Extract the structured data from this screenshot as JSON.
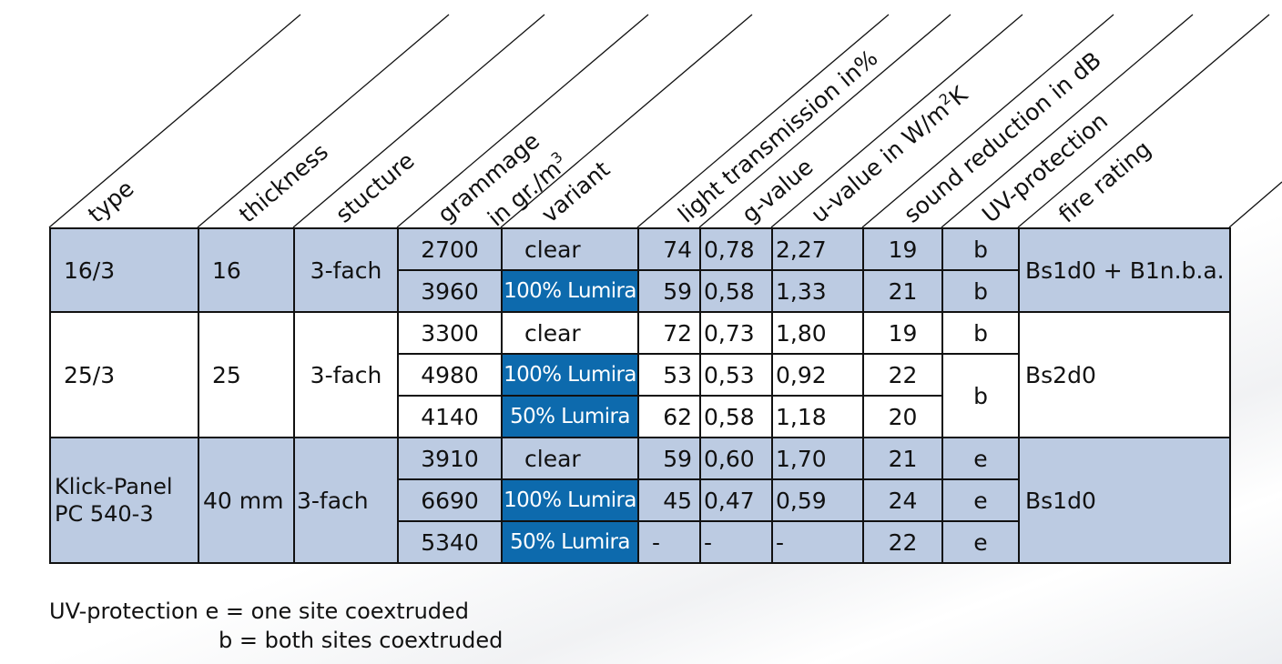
{
  "headers": {
    "type": "type",
    "thickness": "thickness",
    "structure": "stucture",
    "grammage_1": "grammage",
    "grammage_2": "in gr./m",
    "grammage_sup": "3",
    "variant": "variant",
    "light": "light transmission in%",
    "gvalue": "g-value",
    "uvalue": "u-value in W/m",
    "uvalue_sup": "2",
    "uvalue_end": "K",
    "sound": "sound reduction in dB",
    "uv": "UV-protection",
    "fire": "fire rating"
  },
  "groups": [
    {
      "type": "16/3",
      "thickness": "16",
      "structure": "3-fach",
      "fire": "Bs1d0 + B1n.b.a.",
      "rows": [
        {
          "grammage": "2700",
          "variant": "clear",
          "light": "74",
          "g": "0,78",
          "u": "2,27",
          "sound": "19",
          "uv": "b"
        },
        {
          "grammage": "3960",
          "variant": "100% Lumira",
          "light": "59",
          "g": "0,58",
          "u": "1,33",
          "sound": "21",
          "uv": "b"
        }
      ]
    },
    {
      "type": "25/3",
      "thickness": "25",
      "structure": "3-fach",
      "fire": "Bs2d0",
      "rows": [
        {
          "grammage": "3300",
          "variant": "clear",
          "light": "72",
          "g": "0,73",
          "u": "1,80",
          "sound": "19",
          "uv": "b"
        },
        {
          "grammage": "4980",
          "variant": "100% Lumira",
          "light": "53",
          "g": "0,53",
          "u": "0,92",
          "sound": "22",
          "uv": "b"
        },
        {
          "grammage": "4140",
          "variant": "50% Lumira",
          "light": "62",
          "g": "0,58",
          "u": "1,18",
          "sound": "20"
        }
      ]
    },
    {
      "type_line1": "Klick-Panel",
      "type_line2": "PC 540-3",
      "thickness": "40 mm",
      "structure": "3-fach",
      "fire": "Bs1d0",
      "rows": [
        {
          "grammage": "3910",
          "variant": "clear",
          "light": "59",
          "g": "0,60",
          "u": "1,70",
          "sound": "21",
          "uv": "e"
        },
        {
          "grammage": "6690",
          "variant": "100% Lumira",
          "light": "45",
          "g": "0,47",
          "u": "0,59",
          "sound": "24",
          "uv": "e"
        },
        {
          "grammage": "5340",
          "variant": "50% Lumira",
          "light": "-",
          "g": "-",
          "u": "-",
          "sound": "22",
          "uv": "e"
        }
      ]
    }
  ],
  "legend": {
    "line1": "UV-protection e = one site coextruded",
    "line2": "b = both sites coextruded"
  },
  "colors": {
    "row_blue": "#bccbe2",
    "lumira_blue": "#0d6aad",
    "grid": "#111111"
  }
}
